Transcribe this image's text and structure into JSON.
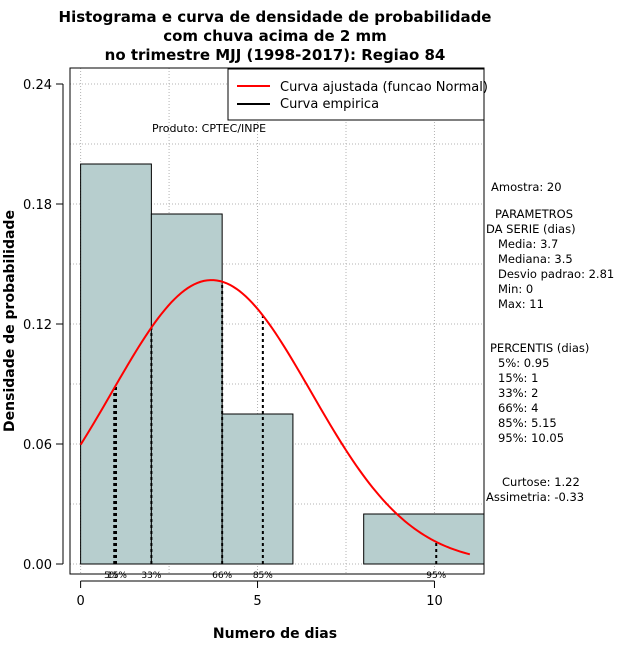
{
  "chart_data": {
    "type": "bar",
    "title_lines": [
      "Histograma e curva de densidade de probabilidade",
      "com chuva acima de 2 mm",
      "no trimestre MJJ (1998-2017): Regiao 84"
    ],
    "xlabel": "Numero de dias",
    "ylabel": "Densidade de probabilidade",
    "xlim": [
      -0.3,
      11.4
    ],
    "ylim": [
      -0.005,
      0.248
    ],
    "x_ticks": [
      0,
      5,
      10
    ],
    "y_ticks": [
      0.0,
      0.06,
      0.12,
      0.18,
      0.24
    ],
    "y_tick_labels": [
      "0.00",
      "0.06",
      "0.12",
      "0.18",
      "0.24"
    ],
    "bins": [
      {
        "start": 0,
        "end": 2,
        "density": 0.2
      },
      {
        "start": 2,
        "end": 4,
        "density": 0.175
      },
      {
        "start": 4,
        "end": 6,
        "density": 0.075
      },
      {
        "start": 6,
        "end": 8,
        "density": 0.0
      },
      {
        "start": 8,
        "end": 11.4,
        "density": 0.025
      }
    ],
    "grid": true,
    "product_label": "Produto: CPTEC/INPE",
    "legend": [
      {
        "label": "Curva ajustada (funcao Normal)",
        "color": "#ff0000"
      },
      {
        "label": "Curva empirica",
        "color": "#000000"
      }
    ],
    "normal_fit": {
      "mean": 3.7,
      "sd": 2.81,
      "x_range": [
        0,
        11
      ]
    },
    "percentile_lines": [
      {
        "x": 0.95,
        "label": "5%"
      },
      {
        "x": 1,
        "label": "15%"
      },
      {
        "x": 2,
        "label": "33%"
      },
      {
        "x": 4,
        "label": "66%"
      },
      {
        "x": 5.15,
        "label": "85%"
      },
      {
        "x": 10.05,
        "label": "95%"
      }
    ],
    "colors": {
      "bar_fill": "#b7cece",
      "curve": "#ff0000",
      "grid": "#b3b3b3"
    }
  },
  "stats": {
    "amostra": "Amostra: 20",
    "param_title_1": "PARAMETROS",
    "param_title_2": "DA SERIE (dias)",
    "media": "Media: 3.7",
    "mediana": "Mediana: 3.5",
    "desvio": "Desvio padrao: 2.81",
    "min": "Min: 0",
    "max": "Max: 11",
    "percentis_title": "PERCENTIS (dias)",
    "p5": "5%: 0.95",
    "p15": "15%: 1",
    "p33": "33%: 2",
    "p66": "66%: 4",
    "p85": "85%: 5.15",
    "p95": "95%: 10.05",
    "curtose": "Curtose: 1.22",
    "assimetria": "Assimetria: -0.33"
  }
}
